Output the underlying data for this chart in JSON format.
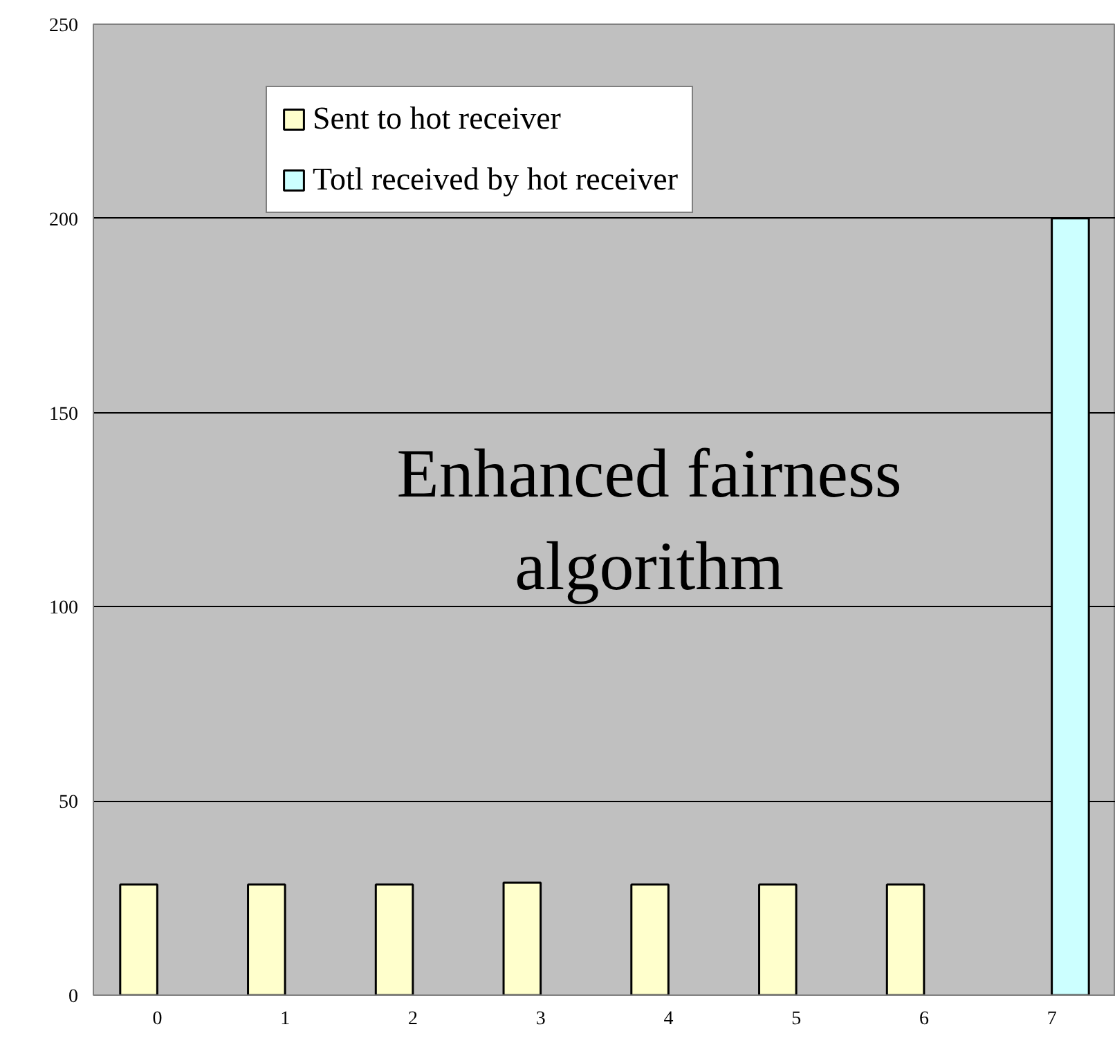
{
  "chart_data": {
    "type": "bar",
    "categories": [
      "0",
      "1",
      "2",
      "3",
      "4",
      "5",
      "6",
      "7"
    ],
    "series": [
      {
        "name": "Sent to hot receiver",
        "color": "#ffffcc",
        "values": [
          28.5,
          28.5,
          28.5,
          29,
          28.5,
          28.5,
          28.5,
          null
        ]
      },
      {
        "name": "Totl received by hot receiver",
        "color": "#ccffff",
        "values": [
          null,
          null,
          null,
          null,
          null,
          null,
          null,
          200
        ]
      }
    ],
    "ylim": [
      0,
      250
    ],
    "yticks": [
      0,
      50,
      100,
      150,
      200,
      250
    ],
    "grid": "y",
    "legend": "top",
    "annotations": [
      "Enhanced fairness\nalgorithm"
    ]
  }
}
